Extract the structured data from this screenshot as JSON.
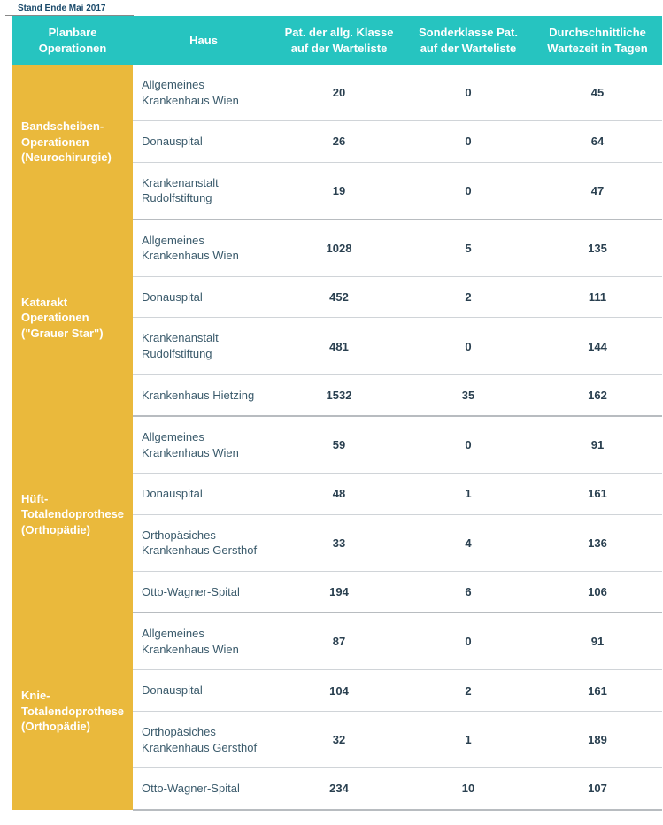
{
  "subtitle": "Stand Ende Mai 2017",
  "columns": {
    "op": "Planbare Operationen",
    "haus": "Haus",
    "pat_allg": "Pat. der allg. Klasse auf der Warteliste",
    "pat_sonder": "Sonderklasse Pat. auf der Warteliste",
    "wartezeit": "Durchschnittliche Wartezeit in Tagen"
  },
  "groups": [
    {
      "label": "Bandscheiben-Operationen (Neurochirurgie)",
      "rows": [
        {
          "haus": "Allgemeines Krankenhaus Wien",
          "allg": "20",
          "sonder": "0",
          "tage": "45"
        },
        {
          "haus": "Donauspital",
          "allg": "26",
          "sonder": "0",
          "tage": "64"
        },
        {
          "haus": "Krankenanstalt Rudolfstiftung",
          "allg": "19",
          "sonder": "0",
          "tage": "47"
        }
      ]
    },
    {
      "label": "Katarakt Operationen (\"Grauer Star\")",
      "rows": [
        {
          "haus": "Allgemeines Krankenhaus Wien",
          "allg": "1028",
          "sonder": "5",
          "tage": "135"
        },
        {
          "haus": "Donauspital",
          "allg": "452",
          "sonder": "2",
          "tage": "111"
        },
        {
          "haus": "Krankenanstalt Rudolfstiftung",
          "allg": "481",
          "sonder": "0",
          "tage": "144"
        },
        {
          "haus": "Krankenhaus Hietzing",
          "allg": "1532",
          "sonder": "35",
          "tage": "162"
        }
      ]
    },
    {
      "label": "Hüft-Totalendoprothese (Orthopädie)",
      "rows": [
        {
          "haus": "Allgemeines Krankenhaus Wien",
          "allg": "59",
          "sonder": "0",
          "tage": "91"
        },
        {
          "haus": "Donauspital",
          "allg": "48",
          "sonder": "1",
          "tage": "161"
        },
        {
          "haus": "Orthopäsiches Krankenhaus Gersthof",
          "allg": "33",
          "sonder": "4",
          "tage": "136"
        },
        {
          "haus": "Otto-Wagner-Spital",
          "allg": "194",
          "sonder": "6",
          "tage": "106"
        }
      ]
    },
    {
      "label": "Knie-Totalendoprothese (Orthopädie)",
      "rows": [
        {
          "haus": "Allgemeines Krankenhaus Wien",
          "allg": "87",
          "sonder": "0",
          "tage": "91"
        },
        {
          "haus": "Donauspital",
          "allg": "104",
          "sonder": "2",
          "tage": "161"
        },
        {
          "haus": "Orthopäsiches Krankenhaus Gersthof",
          "allg": "32",
          "sonder": "1",
          "tage": "189"
        },
        {
          "haus": "Otto-Wagner-Spital",
          "allg": "234",
          "sonder": "10",
          "tage": "107"
        }
      ]
    }
  ],
  "style": {
    "header_bg": "#26c4c0",
    "header_fg": "#ffffff",
    "group_bg": "#eab93c",
    "group_fg": "#ffffff",
    "haus_color": "#3a5a6b",
    "num_color": "#2a4050",
    "row_border": "#d0d4d8",
    "group_border": "#b8bcc0",
    "subtitle_color": "#1a4a6b"
  }
}
